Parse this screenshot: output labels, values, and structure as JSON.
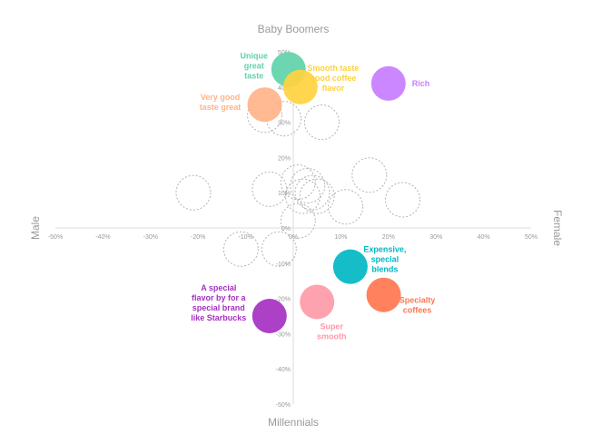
{
  "chart_data": {
    "type": "scatter",
    "title": "",
    "axis_labels": {
      "top": "Baby Boomers",
      "bottom": "Millennials",
      "left": "Male",
      "right": "Female"
    },
    "xlim": [
      -50,
      50
    ],
    "ylim": [
      -50,
      50
    ],
    "x_ticks": [
      "-50%",
      "-40%",
      "-30%",
      "-20%",
      "-10%",
      "0%",
      "10%",
      "20%",
      "30%",
      "40%",
      "50%"
    ],
    "y_ticks": [
      "50%",
      "40%",
      "30%",
      "20%",
      "10%",
      "0%",
      "-10%",
      "-20%",
      "-30%",
      "-40%",
      "-50%"
    ],
    "grid": false,
    "highlighted": [
      {
        "label": "Unique great taste",
        "x": -1,
        "y": 45,
        "color": "#5fd3a9"
      },
      {
        "label": "Smooth taste good coffee flavor",
        "x": 1.5,
        "y": 40,
        "color": "#ffd23f"
      },
      {
        "label": "Rich",
        "x": 20,
        "y": 41,
        "color": "#c77dff"
      },
      {
        "label": "Very good taste great",
        "x": -6,
        "y": 35,
        "color": "#ffb38a"
      },
      {
        "label": "Expensive, special blends",
        "x": 12,
        "y": -11,
        "color": "#00b7c3"
      },
      {
        "label": "Specialty coffees",
        "x": 19,
        "y": -19,
        "color": "#ff7650"
      },
      {
        "label": "Super smooth",
        "x": 5,
        "y": -21,
        "color": "#ff9aa8"
      },
      {
        "label": "A special flavor by for a special brand like Starbucks",
        "x": -5,
        "y": -25,
        "color": "#a530c2"
      }
    ],
    "other_points": [
      {
        "x": -6,
        "y": 32
      },
      {
        "x": -2,
        "y": 31
      },
      {
        "x": 6,
        "y": 30
      },
      {
        "x": -21,
        "y": 10
      },
      {
        "x": -5,
        "y": 11
      },
      {
        "x": 1,
        "y": 13
      },
      {
        "x": 3,
        "y": 12
      },
      {
        "x": 4,
        "y": 10
      },
      {
        "x": 2,
        "y": 9
      },
      {
        "x": 5,
        "y": 9
      },
      {
        "x": 16,
        "y": 15
      },
      {
        "x": 23,
        "y": 8
      },
      {
        "x": 11,
        "y": 6
      },
      {
        "x": 1,
        "y": 2
      },
      {
        "x": -11,
        "y": -6
      },
      {
        "x": -3,
        "y": -6
      }
    ]
  }
}
